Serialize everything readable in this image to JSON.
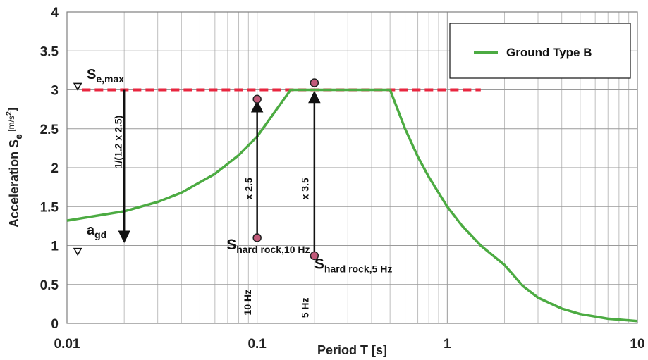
{
  "chart_data": {
    "type": "line",
    "x_scale": "log",
    "xlim": [
      0.01,
      10
    ],
    "ylim": [
      0,
      4
    ],
    "x_ticks": [
      "0.01",
      "0.1",
      "1",
      "10"
    ],
    "y_ticks": [
      "0",
      "0.5",
      "1",
      "1.5",
      "2",
      "2.5",
      "3",
      "3.5",
      "4"
    ],
    "xlabel": "Period T [s]",
    "ylabel": {
      "main": "Acceleration S",
      "sub": "e",
      "unit_open": " [m/s",
      "unit_sup": "2",
      "unit_close": "]"
    },
    "grid": true,
    "legend_position": "top-right",
    "series": [
      {
        "name": "Ground Type B",
        "color": "#4cab42",
        "x": [
          0.01,
          0.02,
          0.03,
          0.04,
          0.06,
          0.08,
          0.1,
          0.15,
          0.2,
          0.3,
          0.4,
          0.5,
          0.6,
          0.7,
          0.8,
          1.0,
          1.2,
          1.5,
          2.0,
          2.5,
          3.0,
          4.0,
          5.0,
          7.0,
          10.0
        ],
        "y": [
          1.32,
          1.44,
          1.56,
          1.68,
          1.92,
          2.16,
          2.4,
          3.0,
          3.0,
          3.0,
          3.0,
          3.0,
          2.5,
          2.14,
          1.88,
          1.5,
          1.25,
          1.0,
          0.75,
          0.48,
          0.33,
          0.19,
          0.12,
          0.06,
          0.03
        ]
      }
    ],
    "reference_line": {
      "y": 3.0,
      "x_range": [
        0.012,
        1.5
      ],
      "color": "#e8263f",
      "style": "dashed"
    },
    "points": [
      {
        "name": "hard_rock_10hz_bottom",
        "x": 0.1,
        "y": 1.1
      },
      {
        "name": "hard_rock_10hz_top",
        "x": 0.1,
        "y": 2.88
      },
      {
        "name": "hard_rock_5hz_bottom",
        "x": 0.2,
        "y": 0.87
      },
      {
        "name": "hard_rock_5hz_top",
        "x": 0.2,
        "y": 3.09
      }
    ],
    "point_color": "#c25a7a",
    "arrows": [
      {
        "x": 0.1,
        "from": 1.1,
        "to": 2.88
      },
      {
        "x": 0.2,
        "from": 0.87,
        "to": 3.0
      },
      {
        "x": 0.02,
        "from": 3.0,
        "to": 1.02
      }
    ],
    "annotations": {
      "se_max": {
        "main": "S",
        "sub": "e,max",
        "x": 0.0115,
        "y": 3.14
      },
      "agd": {
        "main": "a",
        "sub": "gd",
        "x": 0.0115,
        "y": 1.14
      },
      "label_10hz_point": {
        "main": "S",
        "sub": "hard rock,10 Hz",
        "x": 0.069,
        "y": 0.95
      },
      "label_5hz_point": {
        "main": "S",
        "sub": "hard rock,5 Hz",
        "x": 0.2,
        "y": 0.7
      },
      "factor_down": {
        "text": "1/(1.2 x 2.5)",
        "x": 0.0194,
        "y": 2.33
      },
      "factor_25": {
        "text": "x 2.5",
        "x": 0.094,
        "y": 1.73
      },
      "factor_35": {
        "text": "x 3.5",
        "x": 0.186,
        "y": 1.73
      },
      "freq_10": {
        "text": "10 Hz",
        "x": 0.093,
        "y": 0.27
      },
      "freq_5": {
        "text": "5 Hz",
        "x": 0.186,
        "y": 0.2
      }
    }
  }
}
